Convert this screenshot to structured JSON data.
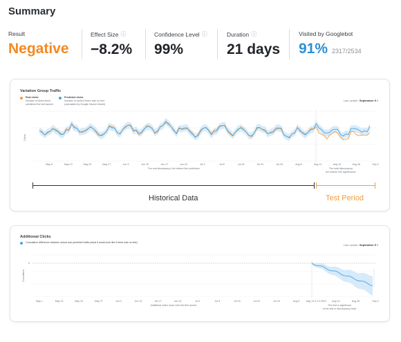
{
  "summary": {
    "title": "Summary",
    "metrics": [
      {
        "label": "Result",
        "value": "Negative",
        "color": "#f5891f",
        "info": false
      },
      {
        "label": "Effect Size",
        "value": "−8.2%",
        "color": "#2b2f33",
        "info": true
      },
      {
        "label": "Confidence Level",
        "value": "99%",
        "color": "#2b2f33",
        "info": true
      },
      {
        "label": "Duration",
        "value": "21 days",
        "color": "#2b2f33",
        "info": true
      },
      {
        "label": "Visited by Googlebot",
        "value": "91%",
        "sub": "2317/2534",
        "color": "#2d8fd5",
        "info": false
      }
    ]
  },
  "traffic_chart": {
    "title": "Variation Group Traffic",
    "last_updated_prefix": "Last update:",
    "last_updated_value": "September 5",
    "legend": [
      {
        "name": "Real clicks",
        "desc_line1": "Number of clicks since",
        "desc_line2": "published the test launch",
        "color": "#f59a3c"
      },
      {
        "name": "Predicted clicks",
        "desc_line1": "Number of clicks if there was no test",
        "desc_line2": "(calculated by Google Search Model)",
        "color": "#4aa3df"
      }
    ],
    "y_label": "Clicks",
    "x_ticks": [
      "May 6",
      "May 13",
      "May 20",
      "May 27",
      "Jun 3",
      "Jun 10",
      "Jun 17",
      "Jun 24",
      "Jul 1",
      "Jul 8",
      "Jul 15",
      "Jul 22",
      "Jul 29",
      "Aug 5",
      "Aug 12",
      "Aug 19",
      "Aug 26",
      "Sep 2"
    ],
    "x_sublabel_left": "The real discrepancy, the bottom line prediction",
    "x_sublabel_right_1": "The total discrepancy",
    "x_sublabel_right_2": "the bottom line significance",
    "colors": {
      "real": "#f59a3c",
      "predicted": "#4aa3df",
      "band": "#cfe6f7"
    }
  },
  "periods": {
    "historical": "Historical Data",
    "test": "Test Period",
    "historical_color": "#2b2f33",
    "test_color": "#f39a3d"
  },
  "clicks_chart": {
    "title": "Additional Clicks",
    "legend_text": "Cumulative difference between actual and predicted traffic (what it would look like if there was no test)",
    "last_updated_prefix": "Last update:",
    "last_updated_value": "September 5",
    "y_label": "Cumulative",
    "y_zero": "0",
    "x_ticks": [
      "May 1",
      "May 13",
      "May 20",
      "May 27",
      "Jun 3",
      "Jun 10",
      "Jun 17",
      "Jun 24",
      "Jul 1",
      "Jul 8",
      "Jul 15",
      "Jul 22",
      "Jul 29",
      "Aug 5",
      "Aug 12 & 13 2023",
      "Aug 19",
      "Aug 26",
      "Sep 2"
    ],
    "x_sublabel": "Additional clicks since with test link launch",
    "x_sublabel_right_1": "The test is significant",
    "x_sublabel_right_2": "of the test in discrepancy chart",
    "color": "#4aa3df",
    "band": "#d3e8f8"
  }
}
